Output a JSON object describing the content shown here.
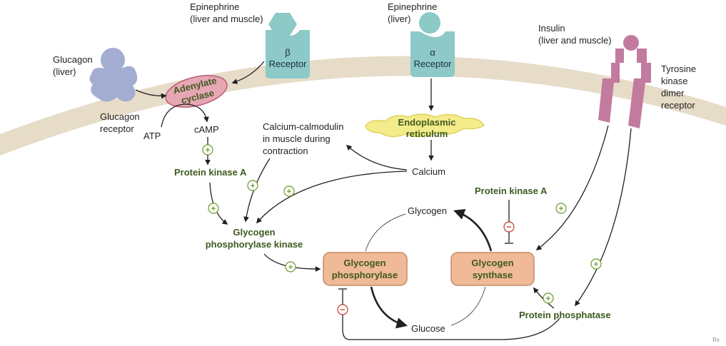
{
  "membrane": {
    "glucagon": "Glucagon",
    "glucagon_site": "(liver)",
    "glucagon_receptor_1": "Glucagon",
    "glucagon_receptor_2": "receptor",
    "epi_beta": "Epinephrine",
    "epi_beta_site": "(liver and muscle)",
    "beta_symbol": "β",
    "beta_word": "Receptor",
    "epi_alpha": "Epinephrine",
    "epi_alpha_site": "(liver)",
    "alpha_symbol": "α",
    "alpha_word": "Receptor",
    "insulin": "Insulin",
    "insulin_site": "(liver and muscle)",
    "tk_1": "Tyrosine",
    "tk_2": "kinase",
    "tk_3": "dimer",
    "tk_4": "receptor"
  },
  "pathway": {
    "adenylate_1": "Adenylate",
    "adenylate_2": "cyclase",
    "atp": "ATP",
    "camp": "cAMP",
    "pka": "Protein kinase A",
    "er_1": "Endoplasmic",
    "er_2": "reticulum",
    "calcium": "Calcium",
    "calmod_1": "Calcium-calmodulin",
    "calmod_2": "in muscle during",
    "calmod_3": "contraction",
    "gpk_1": "Glycogen",
    "gpk_2": "phosphorylase kinase",
    "pka2": "Protein kinase A"
  },
  "enzymes": {
    "phos_1": "Glycogen",
    "phos_2": "phosphorylase",
    "synth_1": "Glycogen",
    "synth_2": "synthase",
    "glycogen": "Glycogen",
    "glucose": "Glucose",
    "phosphatase": "Protein phosphatase"
  },
  "signs": {
    "plus": "+",
    "minus": "−"
  },
  "watermark": "Rx",
  "colors": {
    "membrane": "#e6dcc8",
    "glucagon": "#a3acd1",
    "receptor_teal": "#8cc9c7",
    "adenylate_cyclase": "#e7a6b3",
    "er": "#f4ec8a",
    "enzyme_box": "#f0b997",
    "tyrosine_kinase": "#c27b9f",
    "activation": "#6a9a2a",
    "inhibition": "#c0392b"
  }
}
